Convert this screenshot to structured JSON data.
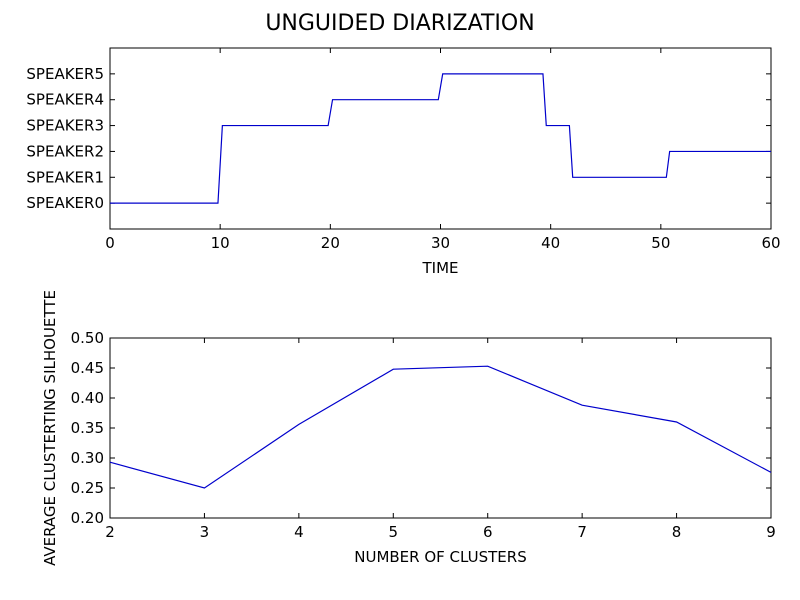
{
  "figure": {
    "title": "UNGUIDED DIARIZATION"
  },
  "colors": {
    "line": "#0000cc",
    "axes": "#000000",
    "background": "#ffffff"
  },
  "chart_data": [
    {
      "type": "line",
      "title": "UNGUIDED DIARIZATION",
      "xlabel": "TIME",
      "ylabel": "",
      "xlim": [
        0,
        60
      ],
      "ylim": [
        -1,
        6
      ],
      "xticks": [
        0,
        10,
        20,
        30,
        40,
        50,
        60
      ],
      "yticks": [
        0,
        1,
        2,
        3,
        4,
        5
      ],
      "ytick_labels": [
        "SPEAKER0",
        "SPEAKER1",
        "SPEAKER2",
        "SPEAKER3",
        "SPEAKER4",
        "SPEAKER5"
      ],
      "grid": false,
      "series": [
        {
          "x": [
            0,
            0.2,
            9.8,
            10.2,
            19.8,
            20.2,
            29.8,
            30.2,
            39.3,
            39.6,
            41.7,
            42.0,
            50.5,
            50.8,
            60
          ],
          "y": [
            0,
            0,
            0,
            3,
            3,
            4,
            4,
            5,
            5,
            3,
            3,
            1,
            1,
            2,
            2
          ]
        }
      ]
    },
    {
      "type": "line",
      "title": "",
      "xlabel": "NUMBER OF CLUSTERS",
      "ylabel": "AVERAGE CLUSTERTING SILHOUETTE",
      "xlim": [
        2,
        9
      ],
      "ylim": [
        0.2,
        0.5
      ],
      "xticks": [
        2,
        3,
        4,
        5,
        6,
        7,
        8,
        9
      ],
      "yticks": [
        0.2,
        0.25,
        0.3,
        0.35,
        0.4,
        0.45,
        0.5
      ],
      "ytick_labels": [
        "0.20",
        "0.25",
        "0.30",
        "0.35",
        "0.40",
        "0.45",
        "0.50"
      ],
      "grid": false,
      "series": [
        {
          "x": [
            2,
            3,
            4,
            5,
            6,
            7,
            8,
            9
          ],
          "y": [
            0.293,
            0.25,
            0.356,
            0.448,
            0.453,
            0.388,
            0.36,
            0.276
          ]
        }
      ]
    }
  ]
}
